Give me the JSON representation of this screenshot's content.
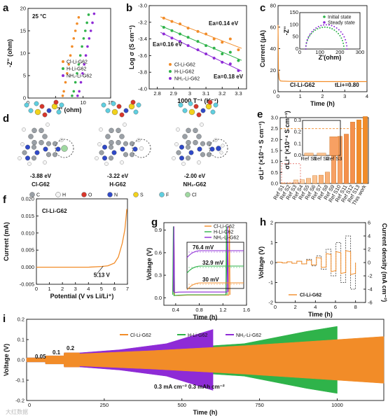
{
  "colors": {
    "orange": "#f28c28",
    "green": "#2fb34a",
    "purple": "#8e2bd6",
    "blue": "#2f49c8",
    "gray": "#9aa0a6",
    "red": "#d9362b",
    "yellow": "#f2d21b",
    "cyan": "#5fcfe0",
    "lightgreen": "#9fd8a0"
  },
  "panels": {
    "a": "a",
    "b": "b",
    "c": "c",
    "d": "d",
    "e": "e",
    "f": "f",
    "g": "g",
    "h": "h",
    "i": "i"
  },
  "series_names": {
    "cl": "Cl-Li-G62",
    "h": "H-Li-G62",
    "nh2": "NH₂-Li-G62"
  },
  "watermark": "大红数据",
  "chart_data": [
    {
      "id": "a",
      "type": "scatter",
      "annotation": "25 °C",
      "xlabel": "Z' (ohm)",
      "ylabel": "-Z'' (ohm)",
      "xlim": [
        0,
        15
      ],
      "ylim": [
        0,
        20
      ],
      "xticks": [
        0,
        5,
        10,
        15
      ],
      "yticks": [
        0,
        5,
        10,
        15,
        20
      ],
      "series": [
        {
          "name": "Cl-Li-G62",
          "color": "#f28c28",
          "x": [
            6.3,
            6.5,
            6.8,
            7.1,
            7.4,
            7.7,
            8.0,
            8.3,
            8.6,
            8.9,
            9.2
          ],
          "y": [
            0.5,
            1.5,
            3.5,
            5.5,
            7.5,
            9.5,
            11.5,
            13.3,
            15.0,
            16.6,
            18.0
          ]
        },
        {
          "name": "H-Li-G62",
          "color": "#2fb34a",
          "x": [
            8.0,
            8.3,
            8.6,
            8.9,
            9.2,
            9.5,
            9.8,
            10.1,
            10.4,
            10.7,
            11.0
          ],
          "y": [
            0.5,
            1.5,
            3.5,
            5.5,
            7.5,
            9.5,
            11.5,
            13.3,
            15.0,
            16.8,
            18.6
          ]
        },
        {
          "name": "NH₂-Li-G62",
          "color": "#8e2bd6",
          "x": [
            9.0,
            9.3,
            9.6,
            9.9,
            10.2,
            10.5,
            10.8,
            11.1,
            11.4,
            11.7,
            12.0
          ],
          "y": [
            0.5,
            1.5,
            3.5,
            5.5,
            7.5,
            9.5,
            11.5,
            13.3,
            15.0,
            16.8,
            18.8
          ]
        }
      ]
    },
    {
      "id": "b",
      "type": "scatter",
      "xlabel": "1000 T⁻¹ (K⁻¹)",
      "ylabel": "Log σ (S cm⁻¹)",
      "xlim": [
        2.75,
        3.35
      ],
      "ylim": [
        -4.0,
        -3.0
      ],
      "xticks": [
        2.8,
        2.9,
        3.0,
        3.1,
        3.2,
        3.3
      ],
      "yticks": [
        -4.0,
        -3.8,
        -3.6,
        -3.4,
        -3.2,
        -3.0
      ],
      "annotations": [
        "Ea=0.14 eV",
        "Ea=0.16 eV",
        "Ea=0.18 eV"
      ],
      "x": [
        2.84,
        2.89,
        2.94,
        2.99,
        3.05,
        3.1,
        3.15,
        3.2,
        3.25,
        3.3
      ],
      "series": [
        {
          "name": "Cl-Li-G62",
          "color": "#f28c28",
          "y": [
            -3.15,
            -3.19,
            -3.22,
            -3.27,
            -3.31,
            -3.34,
            -3.4,
            -3.44,
            -3.4,
            -3.53
          ]
        },
        {
          "name": "H-Li-G62",
          "color": "#2fb34a",
          "y": [
            -3.26,
            -3.3,
            -3.34,
            -3.38,
            -3.43,
            -3.48,
            -3.51,
            -3.58,
            -3.56,
            -3.66
          ]
        },
        {
          "name": "NH₂-Li-G62",
          "color": "#8e2bd6",
          "y": [
            -3.34,
            -3.39,
            -3.43,
            -3.48,
            -3.53,
            -3.58,
            -3.63,
            -3.68,
            -3.7,
            -3.78
          ]
        }
      ]
    },
    {
      "id": "c",
      "type": "line",
      "xlabel": "Time (h)",
      "ylabel": "Current (μA)",
      "xlim": [
        0,
        4
      ],
      "ylim": [
        0,
        80
      ],
      "xticks": [
        0,
        1,
        2,
        3,
        4
      ],
      "yticks": [
        0,
        20,
        40,
        60,
        80
      ],
      "series_label": "Cl-Li-G62",
      "tli": "tLi+=0.80",
      "x": [
        0,
        0.02,
        0.05,
        0.1,
        0.2,
        0.5,
        1,
        2,
        3,
        4
      ],
      "y": [
        62,
        20,
        12,
        10,
        9.8,
        9.6,
        9.5,
        9.4,
        9.4,
        9.4
      ],
      "inset": {
        "xlabel": "Z'(ohm)",
        "ylabel": "-Z''",
        "xlim": [
          0,
          300
        ],
        "ylim": [
          0,
          150
        ],
        "xticks": [
          0,
          100,
          200,
          300
        ],
        "yticks": [
          0,
          50,
          100,
          150
        ],
        "legend": [
          "Initial state",
          "Steady state"
        ],
        "series": [
          {
            "name": "Initial state",
            "color": "#2fb34a",
            "arc": [
              30,
              220,
              90
            ]
          },
          {
            "name": "Steady state",
            "color": "#8e2bd6",
            "arc": [
              30,
              235,
              100
            ]
          }
        ]
      }
    },
    {
      "id": "d",
      "type": "diagram",
      "molecules": [
        {
          "energy": "-3.88 eV",
          "name": "Cl-G62",
          "substituent": "cl"
        },
        {
          "energy": "-3.22 eV",
          "name": "H-G62",
          "substituent": "h"
        },
        {
          "energy": "-2.00 eV",
          "name": "NH₂-G62",
          "substituent": "nh2"
        }
      ],
      "atom_legend": [
        {
          "label": "C",
          "color": "#9aa0a6"
        },
        {
          "label": "H",
          "color": "#f4f4f4"
        },
        {
          "label": "O",
          "color": "#d9362b"
        },
        {
          "label": "N",
          "color": "#2f49c8"
        },
        {
          "label": "S",
          "color": "#f2d21b"
        },
        {
          "label": "F",
          "color": "#5fcfe0"
        },
        {
          "label": "Cl",
          "color": "#9fd8a0"
        }
      ]
    },
    {
      "id": "e",
      "type": "bar",
      "ylabel": "σLi⁺ (×10⁻⁴ S cm⁻¹)",
      "ylim": [
        0,
        3.0
      ],
      "yticks": [
        0.0,
        0.5,
        1.0,
        1.5,
        2.0,
        2.5,
        3.0
      ],
      "categories": [
        "Ref S1",
        "Ref S2",
        "Ref S3",
        "Ref S4",
        "Ref S5",
        "Ref S6",
        "Ref S7",
        "Ref S8",
        "Ref S9",
        "Ref S10",
        "Ref S11",
        "Ref S12",
        "Ref S13",
        "This work"
      ],
      "values": [
        0.02,
        0.02,
        0.16,
        0.17,
        0.23,
        0.36,
        0.38,
        0.52,
        1.75,
        2.15,
        2.25,
        2.8,
        2.9,
        3.05
      ],
      "inset": {
        "ylabel": "σLi⁺ (×10⁻⁴ S cm⁻¹)",
        "ylim": [
          0,
          0.3
        ],
        "yticks": [
          0.0,
          0.1,
          0.2,
          0.3
        ],
        "categories": [
          "Ref S1",
          "Ref S2",
          "Ref S3"
        ],
        "values": [
          0.02,
          0.02,
          0.16
        ]
      }
    },
    {
      "id": "f",
      "type": "line",
      "title": "Cl-Li-G62",
      "xlabel": "Potential (V vs Li/Li⁺)",
      "ylabel": "Current (mA)",
      "xlim": [
        0,
        7
      ],
      "ylim": [
        -0.005,
        0.02
      ],
      "xticks": [
        0,
        1,
        2,
        3,
        4,
        5,
        6,
        7
      ],
      "yticks": [
        -0.005,
        0.0,
        0.005,
        0.01,
        0.015,
        0.02
      ],
      "annotation": "5.13 V",
      "x": [
        0,
        1,
        2,
        3,
        4,
        5,
        5.5,
        6.0,
        6.3,
        6.6,
        6.8,
        6.95
      ],
      "y": [
        0.0,
        0.0,
        0.0,
        0.0,
        0.0,
        0.0002,
        0.0004,
        0.0012,
        0.003,
        0.007,
        0.011,
        0.017
      ]
    },
    {
      "id": "g",
      "type": "line",
      "xlabel": "Time (h)",
      "ylabel": "Voltage (V)",
      "xlim": [
        0.2,
        1.6
      ],
      "ylim": [
        -0.1,
        1.0
      ],
      "xticks": [
        0.4,
        0.8,
        1.2,
        1.6
      ],
      "yticks": [
        0.0,
        0.3,
        0.6,
        0.9
      ],
      "legend": [
        "Cl-Li-G62",
        "H-Li-G62",
        "NH₂-Li-G62"
      ],
      "overpotentials": [
        "76.4 mV",
        "32.9 mV",
        "30 mV"
      ],
      "series": [
        {
          "name": "Cl-Li-G62",
          "color": "#f28c28",
          "x": [
            0.35,
            0.37,
            0.38,
            0.45,
            0.6,
            1.0,
            1.3,
            1.31,
            1.32
          ],
          "y": [
            0.05,
            0.95,
            0.03,
            0.03,
            0.035,
            0.035,
            0.035,
            0.95,
            0.04
          ]
        },
        {
          "name": "H-Li-G62",
          "color": "#2fb34a",
          "x": [
            0.35,
            0.36,
            0.37,
            0.45,
            0.6,
            1.0,
            1.25,
            1.26,
            1.27
          ],
          "y": [
            0.04,
            0.95,
            0.03,
            0.035,
            0.04,
            0.04,
            0.04,
            0.95,
            0.04
          ]
        },
        {
          "name": "NH₂-Li-G62",
          "color": "#8e2bd6",
          "x": [
            0.36,
            0.37,
            0.38,
            0.45,
            0.6,
            1.0,
            1.27,
            1.28,
            1.29
          ],
          "y": [
            0.08,
            0.95,
            0.07,
            0.075,
            0.076,
            0.076,
            0.076,
            0.95,
            0.08
          ]
        }
      ]
    },
    {
      "id": "h",
      "type": "line",
      "xlabel": "Time (h)",
      "ylabel": "Voltage (V)",
      "ylabel2": "Current density (mA cm⁻²)",
      "xlim": [
        0,
        9
      ],
      "ylim": [
        -2,
        2
      ],
      "ylim2": [
        -6,
        6
      ],
      "xticks": [
        0,
        2,
        4,
        6,
        8
      ],
      "yticks": [
        -2,
        -1,
        0,
        1,
        2
      ],
      "yticks2": [
        -6,
        -4,
        -2,
        0,
        2,
        4,
        6
      ],
      "legend": "Cl-Li-G62",
      "current_steps": [
        0.05,
        0.1,
        0.2,
        0.5,
        1.0,
        2.0,
        3.0,
        4.0
      ],
      "voltage_steps": [
        0.02,
        0.04,
        0.07,
        0.12,
        0.25,
        0.45,
        0.55,
        0.6
      ]
    },
    {
      "id": "i",
      "type": "area",
      "xlabel": "Time (h)",
      "ylabel": "Voltage (V)",
      "xlim": [
        0,
        1150
      ],
      "ylim": [
        -0.2,
        0.2
      ],
      "xticks": [
        250,
        500,
        750,
        1000
      ],
      "yticks": [
        -0.2,
        -0.1,
        0.0,
        0.1,
        0.2
      ],
      "legend": [
        "Cl-Li-G62",
        "H-Li-G62",
        "NH₂-Li-G62"
      ],
      "rate_labels": [
        "0.05",
        "0.1",
        "0.2"
      ],
      "condition": "0.3 mA cm⁻² 0.3 mAh cm⁻²",
      "series": [
        {
          "name": "Cl-Li-G62",
          "color": "#f28c28",
          "end": 1150,
          "x": [
            0,
            60,
            61,
            120,
            121,
            170,
            171,
            400,
            700,
            1000,
            1150
          ],
          "amp": [
            0.01,
            0.01,
            0.02,
            0.02,
            0.035,
            0.035,
            0.03,
            0.045,
            0.07,
            0.1,
            0.115
          ]
        },
        {
          "name": "H-Li-G62",
          "color": "#2fb34a",
          "end": 1000,
          "x": [
            0,
            60,
            61,
            120,
            121,
            170,
            171,
            400,
            700,
            900,
            1000
          ],
          "amp": [
            0.01,
            0.01,
            0.02,
            0.02,
            0.035,
            0.035,
            0.03,
            0.05,
            0.08,
            0.14,
            0.165
          ]
        },
        {
          "name": "NH₂-Li-G62",
          "color": "#8e2bd6",
          "end": 600,
          "x": [
            0,
            60,
            61,
            120,
            121,
            170,
            171,
            300,
            450,
            600
          ],
          "amp": [
            0.01,
            0.01,
            0.02,
            0.02,
            0.035,
            0.035,
            0.035,
            0.05,
            0.08,
            0.15
          ]
        }
      ]
    }
  ]
}
